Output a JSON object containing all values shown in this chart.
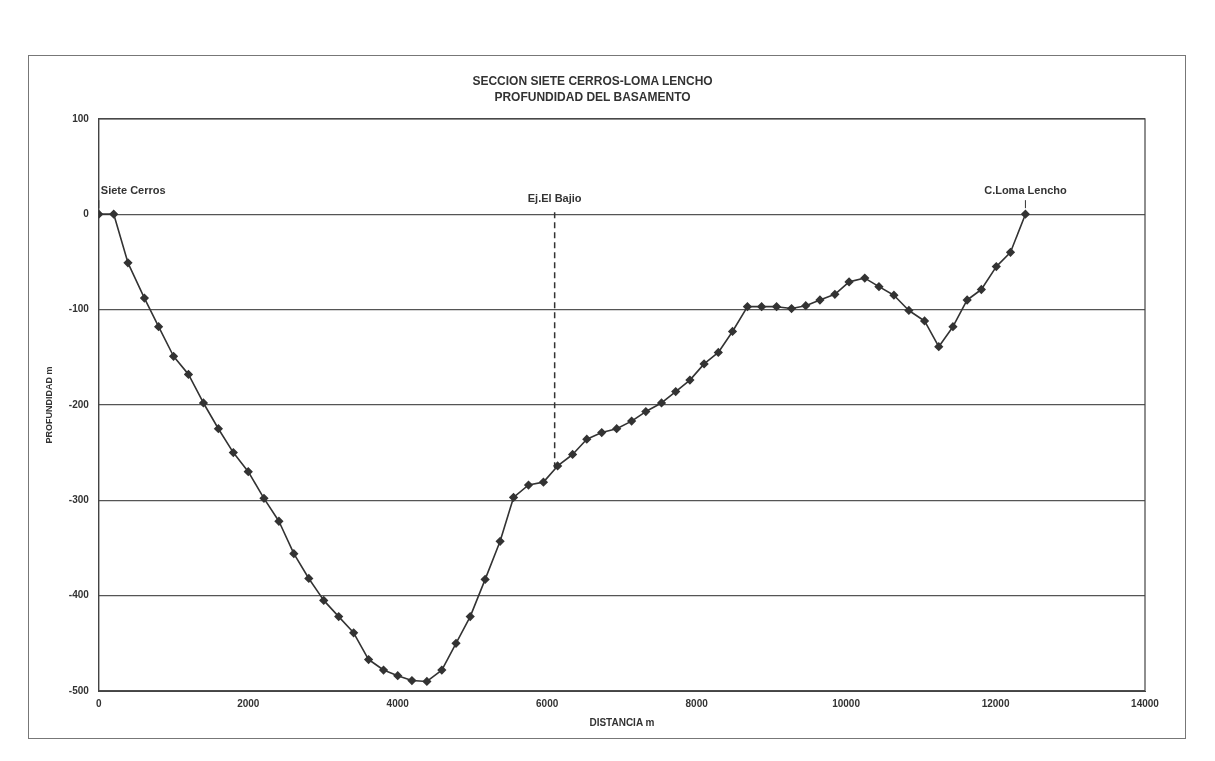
{
  "chart_data": {
    "type": "line",
    "title": "SECCION SIETE CERROS-LOMA LENCHO",
    "subtitle": "PROFUNDIDAD DEL BASAMENTO",
    "xlabel": "DISTANCIA m",
    "ylabel": "PROFUNDIDAD m",
    "x": [
      0,
      200,
      390,
      610,
      800,
      1000,
      1200,
      1400,
      1600,
      1800,
      2000,
      2210,
      2410,
      2610,
      2810,
      3010,
      3210,
      3410,
      3610,
      3810,
      4000,
      4190,
      4390,
      4590,
      4780,
      4970,
      5170,
      5370,
      5550,
      5750,
      5950,
      6140,
      6340,
      6530,
      6730,
      6930,
      7130,
      7320,
      7530,
      7720,
      7910,
      8100,
      8290,
      8480,
      8680,
      8870,
      9070,
      9270,
      9460,
      9650,
      9850,
      10040,
      10250,
      10440,
      10640,
      10840,
      11050,
      11240,
      11430,
      11620,
      11810,
      12010,
      12200,
      12400
    ],
    "series": [
      {
        "color": "#333333",
        "values": [
          0,
          0,
          -51,
          -88,
          -118,
          -149,
          -168,
          -198,
          -225,
          -250,
          -270,
          -298,
          -322,
          -356,
          -382,
          -405,
          -422,
          -439,
          -467,
          -478,
          -484,
          -489,
          -490,
          -478,
          -450,
          -422,
          -383,
          -343,
          -297,
          -284,
          -281,
          -264,
          -252,
          -236,
          -229,
          -225,
          -217,
          -207,
          -198,
          -186,
          -174,
          -157,
          -145,
          -123,
          -97,
          -97,
          -97,
          -99,
          -96,
          -90,
          -84,
          -71,
          -67,
          -76,
          -85,
          -101,
          -112,
          -139,
          -118,
          -90,
          -79,
          -55,
          -40,
          0
        ]
      }
    ],
    "xlim": [
      0,
      14000
    ],
    "xticks": [
      0,
      2000,
      4000,
      6000,
      8000,
      10000,
      12000,
      14000
    ],
    "ylim": [
      -500,
      100
    ],
    "yticks": [
      -500,
      -400,
      -300,
      -200,
      -100,
      0,
      100
    ],
    "grid": "y",
    "marker": "diamond",
    "line_style": "solid",
    "legend": false,
    "ref_lines": [
      {
        "axis": "x",
        "value": 6100,
        "label": "Ej.El Bajio",
        "line_style": "dashed",
        "color": "#333333"
      }
    ],
    "annotations": [
      {
        "text": "Siete Cerros",
        "x": 0,
        "y": 0
      },
      {
        "text": "C.Loma Lencho",
        "x": 12400,
        "y": 0
      }
    ]
  }
}
